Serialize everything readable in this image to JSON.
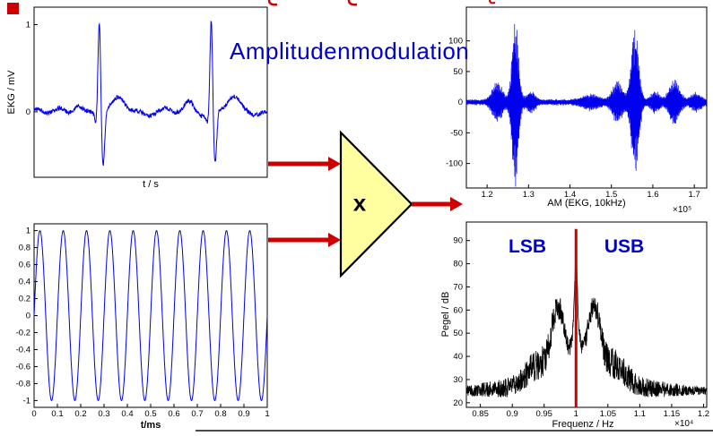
{
  "slide": {
    "title": "Amplitudenmodulation",
    "multiplier_label": "x"
  },
  "colors": {
    "title_blue": "#0000cc",
    "signal_blue": "#0000ee",
    "accent_red": "#cc0000",
    "spectrum_black": "#000000",
    "triangle_fill": "#ffffa0"
  },
  "chart_data": [
    {
      "id": "ekg",
      "type": "line",
      "xlabel": "t / s",
      "ylabel": "EKG / mV",
      "xlim": [
        0,
        1
      ],
      "ylim": [
        -0.75,
        1.2
      ],
      "xticks": [],
      "yticks": [
        0,
        1
      ],
      "color": "#0000ee",
      "generator": {
        "name": "ekg",
        "beats": [
          0.28,
          0.76
        ],
        "r_amp": 1.08,
        "s_amp": -0.62,
        "t_amp": 0.16
      }
    },
    {
      "id": "carrier",
      "type": "line",
      "xlabel": "t/ms",
      "ylabel": "",
      "xlim": [
        0,
        1
      ],
      "ylim": [
        -1.08,
        1.08
      ],
      "xticks": [
        0,
        0.1,
        0.2,
        0.3,
        0.4,
        0.5,
        0.6,
        0.7,
        0.8,
        0.9,
        1
      ],
      "yticks": [
        -1,
        -0.8,
        -0.6,
        -0.4,
        -0.2,
        0,
        0.2,
        0.4,
        0.6,
        0.8,
        1
      ],
      "color": "#0000ee",
      "generator": {
        "name": "sine",
        "cycles": 10,
        "amplitude": 1
      }
    },
    {
      "id": "am",
      "type": "line",
      "xlabel": "AM (EKG, 10kHz)",
      "x_exponent": "×10⁵",
      "xlim": [
        1.15,
        1.73
      ],
      "ylim": [
        -140,
        155
      ],
      "xticks": [
        1.2,
        1.3,
        1.4,
        1.5,
        1.6,
        1.7
      ],
      "yticks": [
        -100,
        -50,
        0,
        50,
        100
      ],
      "color": "#0000ee",
      "generator": {
        "name": "am",
        "baseline": 6,
        "bursts": [
          [
            1.225,
            30,
            0.012
          ],
          [
            1.268,
            140,
            0.0075
          ],
          [
            1.305,
            15,
            0.01
          ],
          [
            1.45,
            10,
            0.02
          ],
          [
            1.515,
            32,
            0.012
          ],
          [
            1.557,
            118,
            0.009
          ],
          [
            1.605,
            15,
            0.01
          ],
          [
            1.652,
            35,
            0.012
          ],
          [
            1.705,
            12,
            0.012
          ]
        ]
      }
    },
    {
      "id": "spectrum",
      "type": "line",
      "xlabel": "Frequenz / Hz",
      "ylabel": "Pegel / dB",
      "x_exponent": "×10⁴",
      "xlim": [
        0.828,
        1.205
      ],
      "ylim": [
        18,
        98
      ],
      "xticks": [
        0.85,
        0.9,
        0.95,
        1,
        1.05,
        1.1,
        1.15,
        1.2
      ],
      "yticks": [
        20,
        30,
        40,
        50,
        60,
        70,
        80,
        90
      ],
      "color": "#000000",
      "carrier_line": {
        "x": 1.0,
        "top_level": 95
      },
      "annotations": [
        {
          "label": "LSB",
          "x": 0.925,
          "y": 87
        },
        {
          "label": "USB",
          "x": 1.075,
          "y": 87
        }
      ],
      "generator": {
        "name": "spectrum",
        "peak": 95,
        "floor": 25
      }
    }
  ]
}
